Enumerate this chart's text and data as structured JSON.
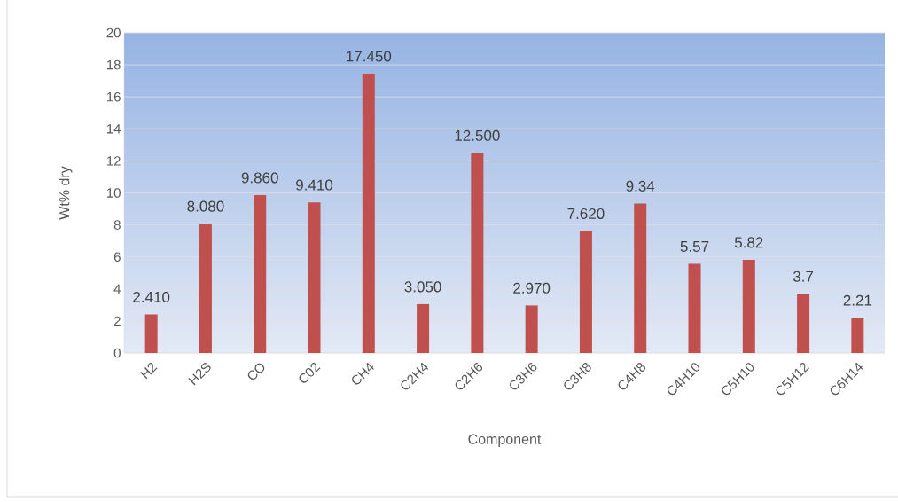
{
  "chart_data": {
    "type": "bar",
    "xlabel": "Component",
    "ylabel": "Wt% dry",
    "categories": [
      "H2",
      "H2S",
      "CO",
      "C02",
      "CH4",
      "C2H4",
      "C2H6",
      "C3H6",
      "C3H8",
      "C4H8",
      "C4H10",
      "C5H10",
      "C5H12",
      "C6H14"
    ],
    "values": [
      2.41,
      8.08,
      9.86,
      9.41,
      17.45,
      3.05,
      12.5,
      2.97,
      7.62,
      9.34,
      5.57,
      5.82,
      3.7,
      2.21
    ],
    "value_labels": [
      "2.410",
      "8.080",
      "9.860",
      "9.410",
      "17.450",
      "3.050",
      "12.500",
      "2.970",
      "7.620",
      "9.34",
      "5.57",
      "5.82",
      "3.7",
      "2.21"
    ],
    "color": "#c0504d",
    "ylim": [
      0,
      20
    ],
    "yticks": [
      0,
      2,
      4,
      6,
      8,
      10,
      12,
      14,
      16,
      18,
      20
    ],
    "grid": "y"
  }
}
